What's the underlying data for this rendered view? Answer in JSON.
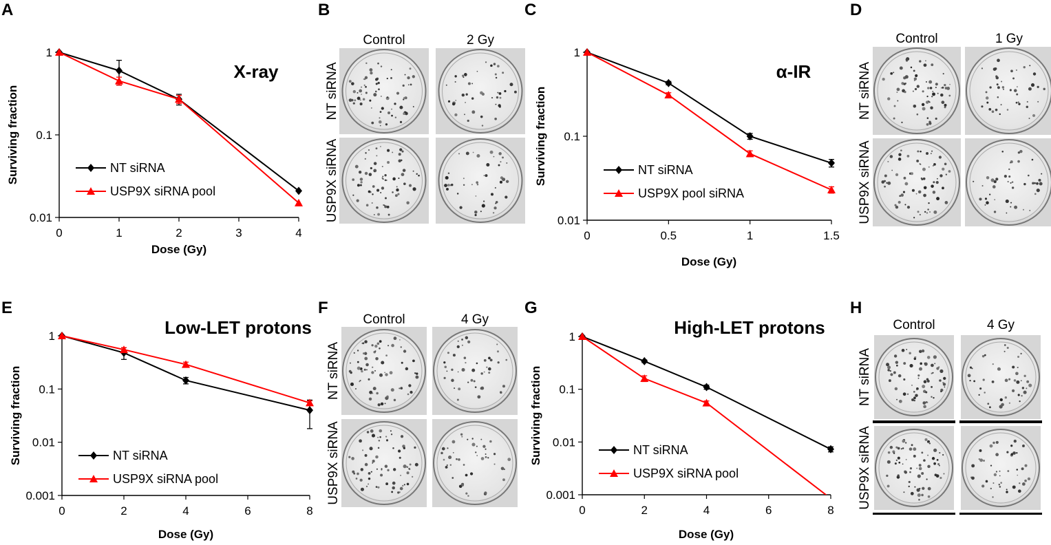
{
  "figure": {
    "panel_letters": [
      "A",
      "B",
      "C",
      "D",
      "E",
      "F",
      "G",
      "H"
    ]
  },
  "colony_panels": [
    {
      "letter": "B",
      "columns": [
        "Control",
        "2 Gy"
      ],
      "rows": [
        "NT siRNA",
        "USP9X siRNA"
      ]
    },
    {
      "letter": "D",
      "columns": [
        "Control",
        "1 Gy"
      ],
      "rows": [
        "NT siRNA",
        "USP9X siRNA"
      ]
    },
    {
      "letter": "F",
      "columns": [
        "Control",
        "4 Gy"
      ],
      "rows": [
        "NT siRNA",
        "USP9X siRNA"
      ]
    },
    {
      "letter": "H",
      "columns": [
        "Control",
        "4 Gy"
      ],
      "rows": [
        "NT siRNA",
        "USP9X siRNA"
      ]
    }
  ],
  "chart_data": [
    {
      "panel": "A",
      "type": "line",
      "title": "X-ray",
      "xlabel": "Dose (Gy)",
      "ylabel": "Surviving fraction",
      "yscale": "log",
      "xlim": [
        0,
        4
      ],
      "ylim": [
        0.01,
        1
      ],
      "xticks": [
        "0",
        "1",
        "2",
        "3",
        "4"
      ],
      "yticks": [
        "0.01",
        "0.1",
        "1"
      ],
      "legend_position": "bottom-left",
      "series": [
        {
          "name": "NT siRNA",
          "color": "#000000",
          "marker": "diamond",
          "x": [
            0,
            1,
            2,
            4
          ],
          "y": [
            1,
            0.6,
            0.27,
            0.021
          ],
          "err": [
            0,
            0.2,
            0.04,
            0
          ]
        },
        {
          "name": "USP9X siRNA pool",
          "color": "#ff0000",
          "marker": "triangle",
          "x": [
            0,
            1,
            2,
            4
          ],
          "y": [
            1,
            0.45,
            0.27,
            0.015
          ],
          "err": [
            0,
            0.05,
            0.03,
            0
          ]
        }
      ]
    },
    {
      "panel": "C",
      "type": "line",
      "title": "α-IR",
      "xlabel": "Dose (Gy)",
      "ylabel": "Surviving fraction",
      "yscale": "log",
      "xlim": [
        0,
        1.5
      ],
      "ylim": [
        0.01,
        1
      ],
      "xticks": [
        "0",
        "0.5",
        "1",
        "1.5"
      ],
      "yticks": [
        "0.01",
        "0.1",
        "1"
      ],
      "legend_position": "bottom-left",
      "series": [
        {
          "name": "NT siRNA",
          "color": "#000000",
          "marker": "diamond",
          "x": [
            0,
            0.5,
            1,
            1.5
          ],
          "y": [
            1,
            0.43,
            0.1,
            0.048
          ],
          "err": [
            0,
            0.02,
            0.008,
            0.005
          ]
        },
        {
          "name": "USP9X pool siRNA",
          "color": "#ff0000",
          "marker": "triangle",
          "x": [
            0,
            0.5,
            1,
            1.5
          ],
          "y": [
            1,
            0.31,
            0.062,
            0.023
          ],
          "err": [
            0,
            0.02,
            0.005,
            0.002
          ]
        }
      ]
    },
    {
      "panel": "E",
      "type": "line",
      "title": "Low-LET protons",
      "xlabel": "Dose (Gy)",
      "ylabel": "Surviving fraction",
      "yscale": "log",
      "xlim": [
        0,
        8
      ],
      "ylim": [
        0.001,
        1
      ],
      "xticks": [
        "0",
        "2",
        "4",
        "6",
        "8"
      ],
      "yticks": [
        "0.001",
        "0.01",
        "0.1",
        "1"
      ],
      "legend_position": "bottom-left",
      "series": [
        {
          "name": "NT siRNA",
          "color": "#000000",
          "marker": "diamond",
          "x": [
            0,
            2,
            4,
            8
          ],
          "y": [
            1,
            0.48,
            0.145,
            0.04
          ],
          "err": [
            0,
            0.12,
            0.02,
            0.022
          ]
        },
        {
          "name": "USP9X siRNA pool",
          "color": "#ff0000",
          "marker": "triangle",
          "x": [
            0,
            2,
            4,
            8
          ],
          "y": [
            1,
            0.55,
            0.29,
            0.055
          ],
          "err": [
            0,
            0.05,
            0.03,
            0.005
          ]
        }
      ]
    },
    {
      "panel": "G",
      "type": "line",
      "title": "High-LET protons",
      "xlabel": "Dose (Gy)",
      "ylabel": "Surviving fraction",
      "yscale": "log",
      "xlim": [
        0,
        8
      ],
      "ylim": [
        0.001,
        1
      ],
      "xticks": [
        "0",
        "2",
        "4",
        "6",
        "8"
      ],
      "yticks": [
        "0.001",
        "0.01",
        "0.1",
        "1"
      ],
      "legend_position": "bottom-left",
      "series": [
        {
          "name": "NT siRNA",
          "color": "#000000",
          "marker": "diamond",
          "x": [
            0,
            2,
            4,
            8
          ],
          "y": [
            1,
            0.34,
            0.11,
            0.0073
          ],
          "err": [
            0,
            0.02,
            0.01,
            0.0008
          ]
        },
        {
          "name": "USP9X siRNA pool",
          "color": "#ff0000",
          "marker": "triangle",
          "x": [
            0,
            2,
            4,
            8
          ],
          "y": [
            1,
            0.16,
            0.055,
            0.00085
          ],
          "err": [
            0,
            0.02,
            0.005,
            0
          ]
        }
      ]
    }
  ]
}
